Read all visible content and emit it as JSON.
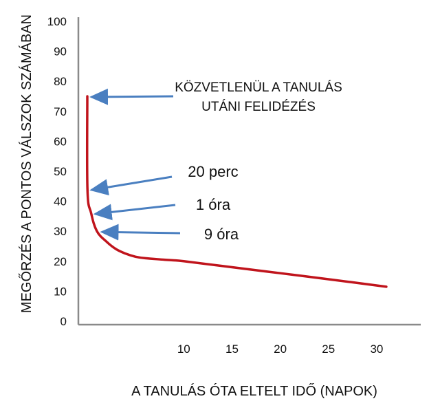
{
  "chart_data": {
    "type": "line",
    "xlabel": "A TANULÁS ÓTA ELTELT IDŐ (NAPOK)",
    "ylabel": "MEGŐRZÉS A PONTOS VÁLSZOK SZÁMÁBAN",
    "xlim": [
      0,
      33
    ],
    "ylim": [
      0,
      100
    ],
    "x_ticks": [
      10,
      15,
      20,
      25,
      30
    ],
    "y_ticks": [
      0,
      10,
      20,
      30,
      40,
      50,
      60,
      70,
      80,
      90,
      100
    ],
    "grid": false,
    "series": [
      {
        "color": "#c0141c",
        "x": [
          0.0,
          0.014,
          0.4,
          1,
          2,
          3,
          4,
          5,
          6,
          8,
          10,
          15,
          20,
          25,
          31
        ],
        "y": [
          75,
          44,
          36,
          30,
          26.5,
          24,
          22.5,
          21.5,
          21,
          20.5,
          20,
          18,
          16,
          14,
          11.5
        ]
      }
    ],
    "annotations": [
      {
        "lines": [
          "KÖZVETLENÜL A TANULÁS",
          "UTÁNI FELIDÉZÉS"
        ],
        "point_x": 0.0,
        "point_y": 75
      },
      {
        "lines": [
          "20 perc"
        ],
        "point_x": 0.014,
        "point_y": 44
      },
      {
        "lines": [
          "1 óra"
        ],
        "point_x": 0.4,
        "point_y": 36
      },
      {
        "lines": [
          "9 óra"
        ],
        "point_x": 1.1,
        "point_y": 30
      }
    ],
    "colors": {
      "curve": "#c0141c",
      "arrow": "#4a7fc0",
      "axis": "#8a8a8a"
    }
  }
}
